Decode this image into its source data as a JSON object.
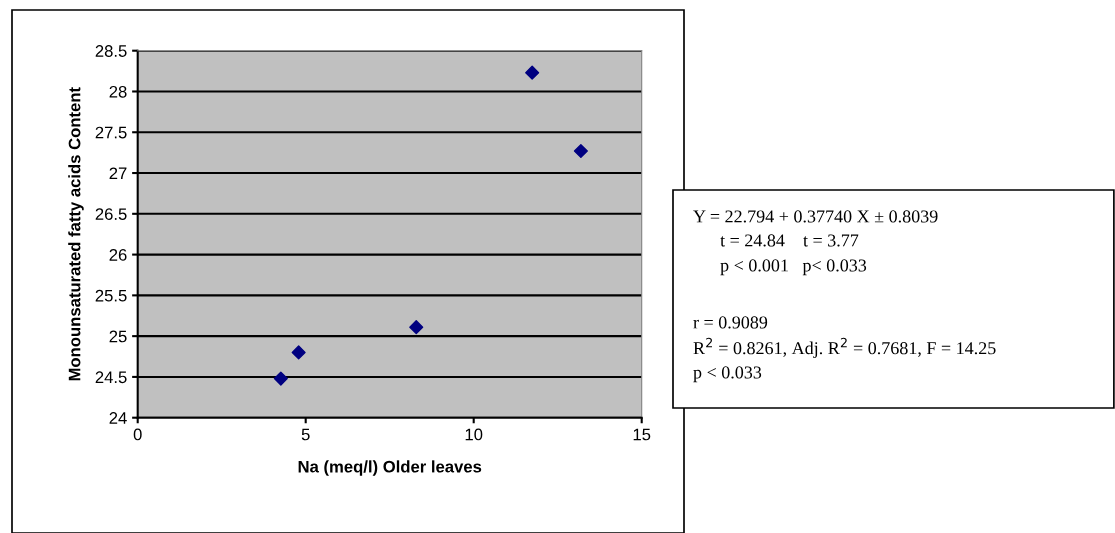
{
  "chart_data": {
    "type": "scatter",
    "xlabel": "Na (meq/l) Older leaves",
    "ylabel": "Monounsaturated fatty acids Content",
    "series": [
      {
        "color": "#000080",
        "x": [
          4.26,
          4.79,
          8.29,
          11.74,
          13.19
        ],
        "values": [
          24.48,
          24.8,
          25.11,
          28.23,
          27.27
        ]
      }
    ],
    "xlim": [
      0,
      15
    ],
    "xticks": [
      0,
      5,
      10,
      15
    ],
    "ylim": [
      24,
      28.5
    ],
    "yticks": [
      24,
      24.5,
      25,
      25.5,
      26,
      26.5,
      27,
      27.5,
      28,
      28.5
    ],
    "grid": "y",
    "marker": "diamond",
    "legend": false,
    "annotations": [
      "Y = 22.794 + 0.37740 X ± 0.8039",
      "      t = 24.84    t = 3.77",
      "      p < 0.001   p< 0.033",
      "r = 0.9089",
      "R$^{2}$ = 0.8261, Adj. R$^{2}$ = 0.7681, F = 14.25",
      "p < 0.033"
    ]
  }
}
